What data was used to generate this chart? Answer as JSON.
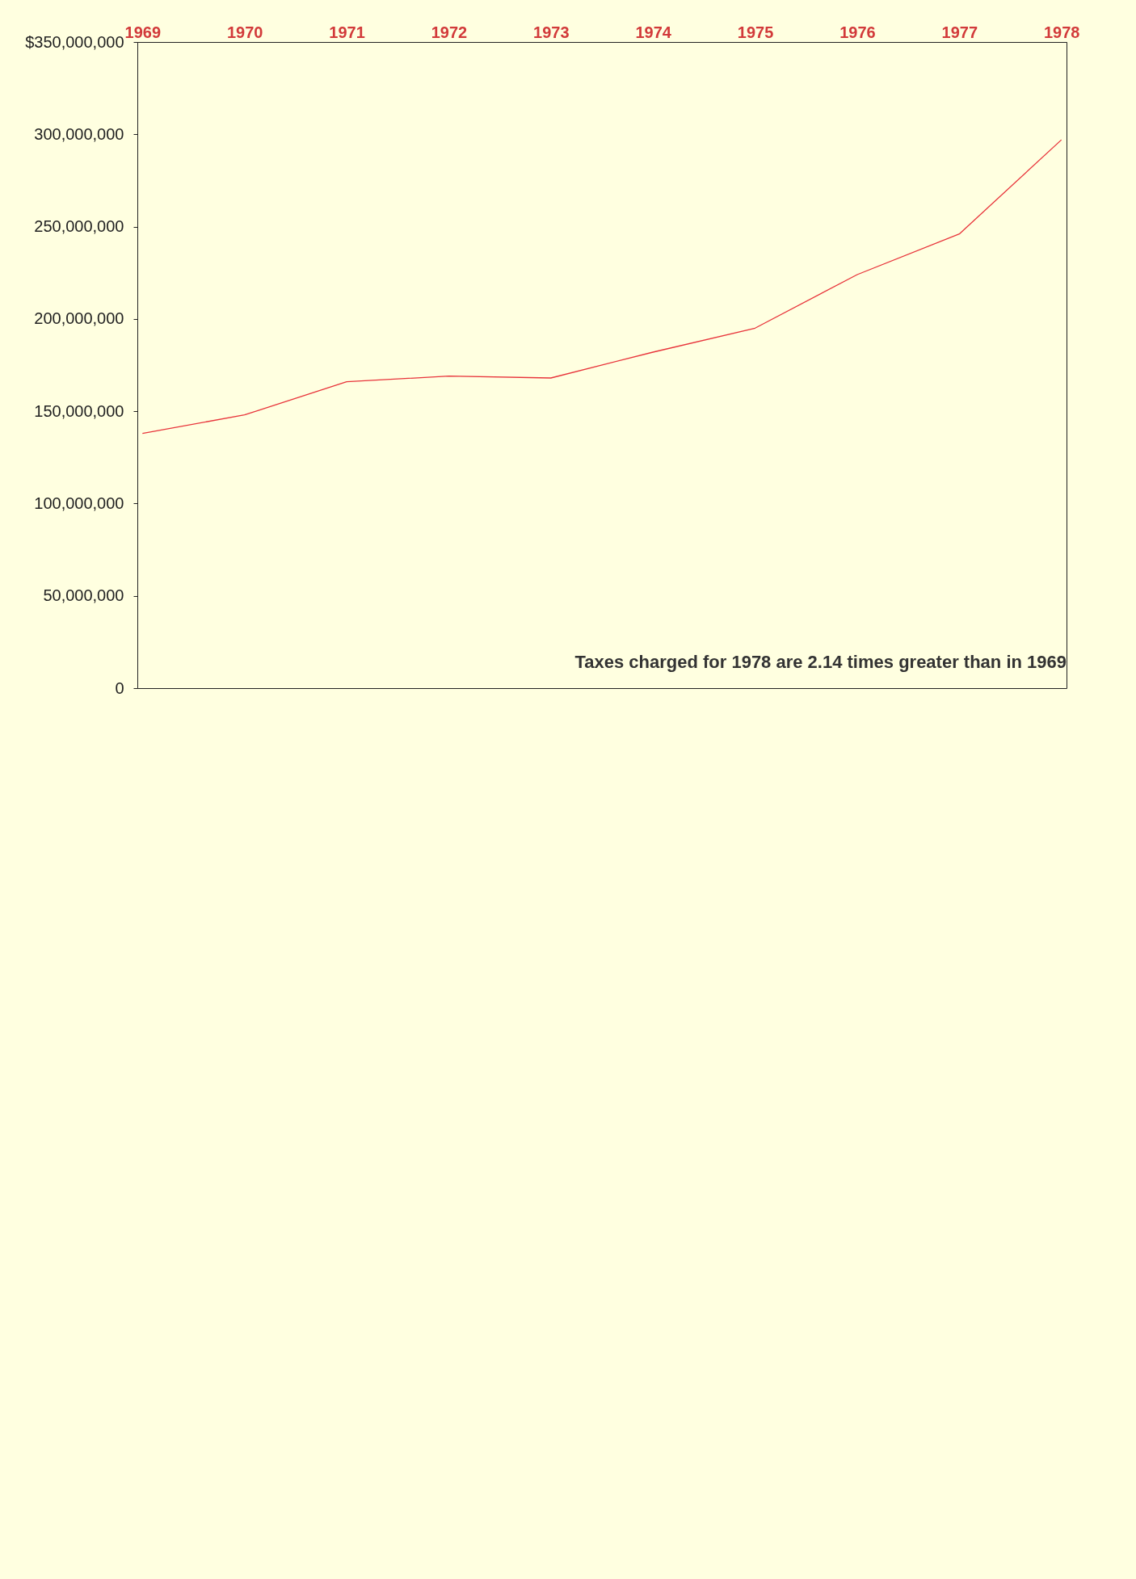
{
  "chart_data": {
    "type": "line",
    "categories": [
      "1969",
      "1970",
      "1971",
      "1972",
      "1973",
      "1974",
      "1975",
      "1976",
      "1977",
      "1978"
    ],
    "series": [
      {
        "color": "#e8333a",
        "values": [
          138000000,
          148000000,
          166000000,
          169000000,
          168000000,
          182000000,
          195000000,
          224000000,
          246000000,
          297000000
        ]
      }
    ],
    "ylim": [
      0,
      350000000
    ],
    "yticks": [
      {
        "value": 0,
        "label": "0"
      },
      {
        "value": 50000000,
        "label": "50,000,000"
      },
      {
        "value": 100000000,
        "label": "100,000,000"
      },
      {
        "value": 150000000,
        "label": "150,000,000"
      },
      {
        "value": 200000000,
        "label": "200,000,000"
      },
      {
        "value": 250000000,
        "label": "250,000,000"
      },
      {
        "value": 300000000,
        "label": "300,000,000"
      },
      {
        "value": 350000000,
        "label": "$350,000,000"
      }
    ],
    "annotations": [
      "Taxes charged for 1978 are 2.14 times greater than in 1969"
    ],
    "grid": false
  }
}
